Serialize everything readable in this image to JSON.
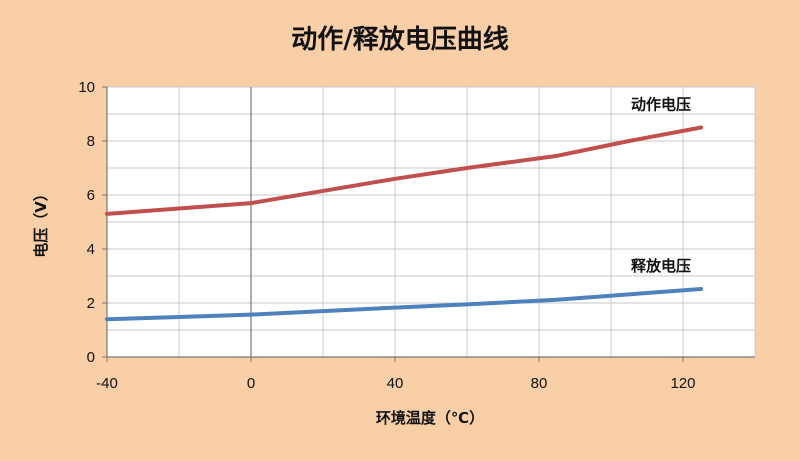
{
  "colors": {
    "background": "#f8cfa6",
    "plot_background": "#ffffff",
    "grid": "#c8c8c8",
    "axis": "#777777"
  },
  "chart_data": {
    "type": "line",
    "title": "动作/释放电压曲线",
    "xlabel": "环境温度（℃）",
    "ylabel": "电压（V）",
    "xlim": [
      -40,
      140
    ],
    "ylim": [
      0,
      10
    ],
    "x_ticks": [
      -40,
      0,
      40,
      80,
      120
    ],
    "x_tick_labels": [
      "-40",
      "0",
      "40",
      "80",
      "120"
    ],
    "x_minor_step": 20,
    "y_ticks": [
      0,
      2,
      4,
      6,
      8,
      10
    ],
    "y_tick_labels": [
      "0",
      "2",
      "4",
      "6",
      "8",
      "10"
    ],
    "y_minor_step": 1,
    "grid": true,
    "series": [
      {
        "name": "动作电压",
        "color": "#c0504d",
        "x": [
          -40,
          -20,
          0,
          20,
          40,
          60,
          85,
          105,
          125
        ],
        "y": [
          5.3,
          5.5,
          5.7,
          6.15,
          6.6,
          7.0,
          7.45,
          8.0,
          8.5
        ]
      },
      {
        "name": "释放电压",
        "color": "#4f81bd",
        "x": [
          -40,
          -20,
          0,
          20,
          40,
          60,
          85,
          105,
          125
        ],
        "y": [
          1.4,
          1.48,
          1.57,
          1.7,
          1.83,
          1.95,
          2.12,
          2.32,
          2.52
        ]
      }
    ]
  }
}
